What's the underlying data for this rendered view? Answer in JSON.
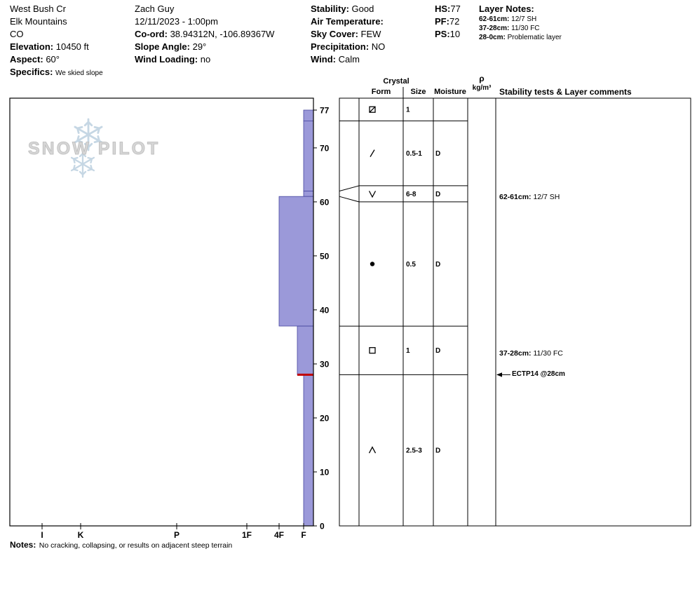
{
  "header": {
    "location": {
      "name": "West Bush Cr",
      "range": "Elk Mountains",
      "state": "CO",
      "elevation_label": "Elevation:",
      "elevation": "10450 ft",
      "aspect_label": "Aspect:",
      "aspect": "60°",
      "specifics_label": "Specifics:",
      "specifics": "We skied slope"
    },
    "observer": {
      "name": "Zach Guy",
      "datetime": "12/11/2023 - 1:00pm",
      "coord_label": "Co-ord:",
      "coord": "38.94312N, -106.89367W",
      "slope_angle_label": "Slope Angle:",
      "slope_angle": "29°",
      "wind_loading_label": "Wind Loading:",
      "wind_loading": "no"
    },
    "conditions": {
      "stability_label": "Stability:",
      "stability": "Good",
      "air_temp_label": "Air Temperature:",
      "air_temp": "",
      "sky_label": "Sky Cover:",
      "sky": "FEW",
      "precip_label": "Precipitation:",
      "precip": "NO",
      "wind_label": "Wind:",
      "wind": "Calm"
    },
    "totals": {
      "hs_label": "HS:",
      "hs": "77",
      "pf_label": "PF:",
      "pf": "72",
      "ps_label": "PS:",
      "ps": "10"
    },
    "layer_notes": {
      "title": "Layer Notes:",
      "notes": [
        {
          "range": "62-61cm:",
          "text": "12/7 SH"
        },
        {
          "range": "37-28cm:",
          "text": "11/30 FC"
        },
        {
          "range": "28-0cm:",
          "text": "Problematic layer"
        }
      ]
    }
  },
  "watermark": {
    "text": "SNOW PILOT"
  },
  "table_headers": {
    "crystal": "Crystal",
    "form": "Form",
    "size": "Size",
    "moisture": "Moisture",
    "rho": "ρ",
    "rho_units": "kg/m³",
    "comments": "Stability tests & Layer comments"
  },
  "chart_data": {
    "type": "snow-profile-bar",
    "depth_unit": "cm",
    "total_depth": 77,
    "depth_ticks": [
      0,
      10,
      20,
      30,
      40,
      50,
      60,
      70,
      77
    ],
    "hardness_ticks": [
      "I",
      "K",
      "P",
      "1F",
      "4F",
      "F"
    ],
    "layers": [
      {
        "from": 77,
        "to": 75,
        "hardness": "F",
        "form": "square-slash",
        "size": "1",
        "moisture": ""
      },
      {
        "from": 75,
        "to": 62,
        "hardness": "F",
        "form": "slash",
        "size": "0.5-1",
        "moisture": "D"
      },
      {
        "from": 62,
        "to": 61,
        "hardness": "F",
        "form": "vee",
        "size": "6-8",
        "moisture": "D"
      },
      {
        "from": 61,
        "to": 37,
        "hardness": "4F",
        "form": "dot",
        "size": "0.5",
        "moisture": "D"
      },
      {
        "from": 37,
        "to": 28,
        "hardness": "F+",
        "form": "square",
        "size": "1",
        "moisture": "D"
      },
      {
        "from": 28,
        "to": 0,
        "hardness": "F",
        "form": "caret",
        "size": "2.5-3",
        "moisture": "D"
      }
    ],
    "fracture_line_depth": 28,
    "stability_tests": [
      {
        "label": "ECTP14 @28cm",
        "depth": 28
      }
    ],
    "layer_comments": [
      {
        "depth_range": "62-61cm:",
        "text": "12/7 SH",
        "depth": 61.5
      },
      {
        "depth_range": "37-28cm:",
        "text": "11/30 FC",
        "depth": 32.5
      }
    ],
    "bar_color": "#9b99d9",
    "bar_stroke": "#4848a0",
    "fracture_color": "#c00000"
  },
  "notes": {
    "label": "Notes:",
    "text": "No cracking, collapsing, or results on adjacent steep terrain"
  }
}
